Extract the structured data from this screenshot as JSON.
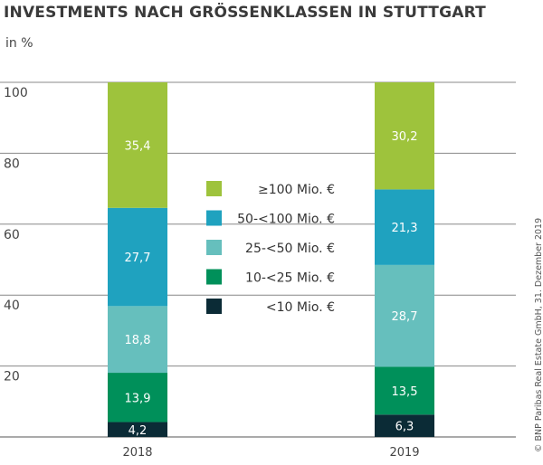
{
  "chart_data": {
    "type": "bar",
    "stacked": true,
    "title": "INVESTMENTS NACH GRÖSSENKLASSEN IN STUTTGART",
    "ylabel": "in %",
    "xlabel": "",
    "ylim": [
      0,
      100
    ],
    "yticks": [
      20,
      40,
      60,
      80,
      100
    ],
    "grid": true,
    "legend_position": "center",
    "categories": [
      "2018",
      "2019"
    ],
    "series": [
      {
        "name": "<10 Mio. €",
        "color": "#0b2b36",
        "values": [
          4.2,
          6.3
        ],
        "labels": [
          "4,2",
          "6,3"
        ]
      },
      {
        "name": "10-<25 Mio. €",
        "color": "#00905a",
        "values": [
          13.9,
          13.5
        ],
        "labels": [
          "13,9",
          "13,5"
        ]
      },
      {
        "name": "25-<50 Mio. €",
        "color": "#66bfbd",
        "values": [
          18.8,
          28.7
        ],
        "labels": [
          "18,8",
          "28,7"
        ]
      },
      {
        "name": "50-<100 Mio. €",
        "color": "#1fa2bf",
        "values": [
          27.7,
          21.3
        ],
        "labels": [
          "27,7",
          "21,3"
        ]
      },
      {
        "name": "≥100 Mio. €",
        "color": "#9ec33c",
        "values": [
          35.4,
          30.2
        ],
        "labels": [
          "35,4",
          "30,2"
        ]
      }
    ],
    "source": "© BNP Paribas Real Estate GmbH, 31. Dezember 2019"
  }
}
